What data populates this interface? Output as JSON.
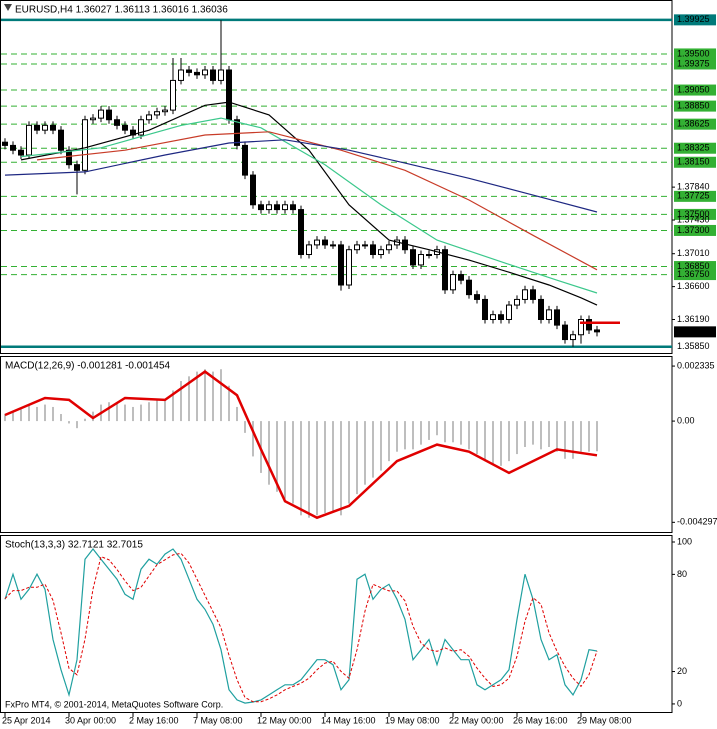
{
  "chart_data": [
    {
      "type": "candlestick",
      "title": "EURUSD,H4 1.36027 1.36113 1.36016 1.36036",
      "xlim": [
        -0.5,
        83.375
      ],
      "xticks": [
        {
          "value": 0,
          "label": "25 Apr 2014"
        },
        {
          "value": 8,
          "label": "30 Apr 00:00"
        },
        {
          "value": 16,
          "label": "2 May 16:00"
        },
        {
          "value": 24,
          "label": "7 May 08:00"
        },
        {
          "value": 32,
          "label": "12 May 00:00"
        },
        {
          "value": 40,
          "label": "14 May 16:00"
        },
        {
          "value": 48,
          "label": "19 May 08:00"
        },
        {
          "value": 56,
          "label": "22 May 00:00"
        },
        {
          "value": 64,
          "label": "26 May 16:00"
        },
        {
          "value": 72,
          "label": "29 May 08:00"
        }
      ],
      "ylim": [
        1.3576,
        1.4016
      ],
      "yticks": [
        {
          "value": 1.3784,
          "label": "1.37840"
        },
        {
          "value": 1.3743,
          "label": "1.37430"
        },
        {
          "value": 1.3701,
          "label": "1.37010"
        },
        {
          "value": 1.366,
          "label": "1.36600"
        },
        {
          "value": 1.3619,
          "label": "1.36190"
        }
      ],
      "levels": [
        {
          "value": 1.395,
          "label": "1.39500"
        },
        1.39375,
        {
          "value": 1.3905,
          "label": "1.39050"
        },
        {
          "value": 1.3885,
          "label": "1.38850"
        },
        1.38625,
        1.38325,
        {
          "value": 1.3815,
          "label": "1.38150"
        },
        1.37725,
        {
          "value": 1.375,
          "label": "1.37500"
        },
        {
          "value": 1.373,
          "label": "1.37300"
        },
        {
          "value": 1.3685,
          "label": "1.36850"
        },
        {
          "value": 1.3675,
          "label": "1.36750"
        }
      ],
      "bounds": [
        1.39925,
        {
          "value": 1.3585,
          "label": "1.35850"
        }
      ],
      "bounds_color": "#007a7a",
      "level_color": "#33b033",
      "last": 1.36036,
      "marker": 1.3615,
      "marker_color": "#e00000",
      "open": [
        1.384,
        1.3836,
        1.383,
        1.3824,
        1.3861,
        1.3855,
        1.3861,
        1.3855,
        1.383,
        1.3812,
        1.3805,
        1.3868,
        1.387,
        1.388,
        1.3868,
        1.3861,
        1.3855,
        1.3849,
        1.3868,
        1.3874,
        1.3878,
        1.388,
        1.3917,
        1.393,
        1.3927,
        1.3924,
        1.393,
        1.3917,
        1.393,
        1.3868,
        1.3836,
        1.3799,
        1.3762,
        1.3756,
        1.3762,
        1.3756,
        1.3762,
        1.3756,
        1.37,
        1.3712,
        1.3718,
        1.3712,
        1.3712,
        1.3662,
        1.3706,
        1.3712,
        1.3712,
        1.37,
        1.3706,
        1.3712,
        1.3718,
        1.3706,
        1.3687,
        1.37,
        1.37,
        1.3706,
        1.3656,
        1.3675,
        1.3668,
        1.365,
        1.3644,
        1.3619,
        1.3625,
        1.3619,
        1.3637,
        1.3644,
        1.3656,
        1.3644,
        1.3619,
        1.3631,
        1.3612,
        1.3594,
        1.36,
        1.3619,
        1.3606
      ],
      "high": [
        1.3845,
        1.3841,
        1.3835,
        1.3866,
        1.3866,
        1.3866,
        1.3866,
        1.386,
        1.3835,
        1.3817,
        1.3873,
        1.3875,
        1.3885,
        1.3885,
        1.3873,
        1.3866,
        1.386,
        1.3873,
        1.3879,
        1.3883,
        1.3885,
        1.3945,
        1.3945,
        1.3935,
        1.3932,
        1.3935,
        1.3935,
        1.3992,
        1.3935,
        1.3873,
        1.3841,
        1.3804,
        1.3767,
        1.3767,
        1.3767,
        1.3767,
        1.3767,
        1.3761,
        1.3717,
        1.3723,
        1.3723,
        1.3717,
        1.3717,
        1.3711,
        1.3717,
        1.3717,
        1.3717,
        1.3711,
        1.3717,
        1.3723,
        1.3723,
        1.3711,
        1.3705,
        1.3705,
        1.3711,
        1.3711,
        1.368,
        1.368,
        1.3673,
        1.3655,
        1.3649,
        1.363,
        1.363,
        1.3642,
        1.3649,
        1.3661,
        1.3661,
        1.3649,
        1.3636,
        1.3636,
        1.3617,
        1.3605,
        1.3624,
        1.3624,
        1.3611
      ],
      "low": [
        1.3831,
        1.3825,
        1.3819,
        1.3819,
        1.385,
        1.385,
        1.385,
        1.3825,
        1.3807,
        1.3775,
        1.38,
        1.3863,
        1.3865,
        1.3863,
        1.3856,
        1.385,
        1.3844,
        1.3844,
        1.3863,
        1.3869,
        1.3873,
        1.3875,
        1.3912,
        1.3922,
        1.3919,
        1.3919,
        1.3912,
        1.3912,
        1.3863,
        1.3831,
        1.3794,
        1.3757,
        1.3751,
        1.3751,
        1.3751,
        1.3751,
        1.3751,
        1.3695,
        1.3695,
        1.3707,
        1.3707,
        1.3707,
        1.3655,
        1.3657,
        1.3701,
        1.3707,
        1.3695,
        1.3695,
        1.3701,
        1.3707,
        1.3701,
        1.3682,
        1.3682,
        1.3695,
        1.3695,
        1.3651,
        1.3651,
        1.3663,
        1.3645,
        1.3639,
        1.3614,
        1.3614,
        1.3614,
        1.3614,
        1.3632,
        1.3639,
        1.3639,
        1.3614,
        1.3614,
        1.3607,
        1.3589,
        1.3585,
        1.3589,
        1.3601,
        1.3598
      ],
      "close": [
        1.3836,
        1.383,
        1.3824,
        1.3861,
        1.3855,
        1.3861,
        1.3855,
        1.383,
        1.3812,
        1.3805,
        1.3868,
        1.387,
        1.388,
        1.3868,
        1.3861,
        1.3855,
        1.3849,
        1.3868,
        1.3874,
        1.3878,
        1.388,
        1.3917,
        1.393,
        1.3927,
        1.3924,
        1.393,
        1.3917,
        1.393,
        1.3868,
        1.3836,
        1.3799,
        1.3762,
        1.3756,
        1.3762,
        1.3756,
        1.3762,
        1.3756,
        1.37,
        1.3712,
        1.3718,
        1.3712,
        1.3712,
        1.3662,
        1.3706,
        1.3712,
        1.3712,
        1.37,
        1.3706,
        1.3712,
        1.3718,
        1.3706,
        1.3687,
        1.37,
        1.37,
        1.3706,
        1.3656,
        1.3675,
        1.3668,
        1.365,
        1.3644,
        1.3619,
        1.3625,
        1.3619,
        1.3637,
        1.3644,
        1.3656,
        1.3644,
        1.3619,
        1.3631,
        1.3612,
        1.3594,
        1.36,
        1.3619,
        1.3606,
        1.36036
      ],
      "series": [
        {
          "color": "#000000",
          "x": [
            2,
            10,
            18,
            25,
            28,
            33,
            38,
            43,
            48,
            53,
            58,
            63,
            68,
            72,
            74
          ],
          "values": [
            1.3818,
            1.3833,
            1.3855,
            1.3886,
            1.389,
            1.3874,
            1.383,
            1.3762,
            1.3718,
            1.3706,
            1.3693,
            1.3678,
            1.3662,
            1.3646,
            1.3637
          ]
        },
        {
          "color": "#3cc88c",
          "x": [
            2,
            12,
            22,
            27,
            32,
            40,
            47,
            54,
            62,
            69,
            74
          ],
          "values": [
            1.3822,
            1.3833,
            1.3861,
            1.387,
            1.3858,
            1.3812,
            1.3762,
            1.3718,
            1.3691,
            1.3668,
            1.3652
          ]
        },
        {
          "color": "#c83c28",
          "x": [
            4,
            15,
            25,
            33,
            42,
            50,
            58,
            66,
            74
          ],
          "values": [
            1.3818,
            1.383,
            1.3849,
            1.3853,
            1.383,
            1.3805,
            1.3768,
            1.3724,
            1.3681
          ]
        },
        {
          "color": "#1e2882",
          "x": [
            0,
            10,
            20,
            28,
            35,
            43,
            50,
            58,
            66,
            74
          ],
          "values": [
            1.3799,
            1.3803,
            1.3824,
            1.3839,
            1.3843,
            1.383,
            1.3814,
            1.3795,
            1.3774,
            1.3753
          ]
        }
      ]
    },
    {
      "type": "bar",
      "title": "MACD(12,26,9) -0.001281 -0.001454",
      "color": "#a8a8a8",
      "ylim": [
        -0.00475,
        0.00272
      ],
      "yticks": [
        0.002335,
        {
          "value": 0,
          "label": "0.00"
        },
        -0.004297
      ],
      "values": [
        0.0003,
        0.0004,
        0.0005,
        0.0007,
        0.0006,
        0.0007,
        0.0006,
        0.0003,
        -0.0001,
        -0.0003,
        0.0001,
        0.0004,
        0.0007,
        0.0008,
        0.0008,
        0.0007,
        0.0006,
        0.0007,
        0.0008,
        0.0009,
        0.0009,
        0.0013,
        0.0017,
        0.0019,
        0.0021,
        0.0022,
        0.0021,
        0.0022,
        0.0015,
        0.0006,
        -0.0005,
        -0.0015,
        -0.0022,
        -0.0027,
        -0.003,
        -0.0033,
        -0.0035,
        -0.004,
        -0.0041,
        -0.004,
        -0.0039,
        -0.0038,
        -0.004,
        -0.0035,
        -0.0031,
        -0.0027,
        -0.0024,
        -0.0021,
        -0.0017,
        -0.0013,
        -0.0012,
        -0.0012,
        -0.001,
        -0.0008,
        -0.0006,
        -0.0009,
        -0.0009,
        -0.001,
        -0.0012,
        -0.0014,
        -0.0017,
        -0.0018,
        -0.0019,
        -0.0017,
        -0.0014,
        -0.0011,
        -0.001,
        -0.0012,
        -0.0011,
        -0.0013,
        -0.0016,
        -0.0016,
        -0.0013,
        -0.0013,
        -0.001281
      ],
      "series": [
        {
          "color": "#e00000",
          "x": [
            0,
            5,
            8,
            11,
            15,
            20,
            25,
            29,
            32,
            35,
            39,
            43,
            49,
            54,
            58,
            63,
            69,
            74
          ],
          "values": [
            0.00026,
            0.00098,
            0.0009,
            0.00013,
            0.00098,
            0.0009,
            0.0021,
            0.0011,
            -0.0012,
            -0.0034,
            -0.0041,
            -0.0036,
            -0.0017,
            -0.001,
            -0.0013,
            -0.0022,
            -0.0012,
            -0.001454
          ]
        }
      ]
    },
    {
      "type": "line",
      "title": "Stoch(13,3,3) 32.7121 32.7015",
      "footer": "FxPro MT4, © 2001-2014, MetaQuotes Software Corp.",
      "ylim": [
        -5.6,
        103.7
      ],
      "yticks": [
        100,
        80,
        20,
        0
      ],
      "series": [
        {
          "color": "#20a0a0",
          "values": [
            64.6,
            80.1,
            64.6,
            70.8,
            80.1,
            70.8,
            39.8,
            21.1,
            5.6,
            27.3,
            89.4,
            95.7,
            89.4,
            83.2,
            77.0,
            67.7,
            64.6,
            83.2,
            89.4,
            86.3,
            92.5,
            95.7,
            89.4,
            77.0,
            64.6,
            58.4,
            49.1,
            33.5,
            8.7,
            2.5,
            0.5,
            1.2,
            2.5,
            5.6,
            8.7,
            11.8,
            11.8,
            14.9,
            21.1,
            27.3,
            27.3,
            24.2,
            8.7,
            14.9,
            77.0,
            80.1,
            64.6,
            70.8,
            73.9,
            64.6,
            52.2,
            27.3,
            33.5,
            39.8,
            24.2,
            39.8,
            33.5,
            27.3,
            27.3,
            11.8,
            8.7,
            11.8,
            14.9,
            21.1,
            52.2,
            80.1,
            64.6,
            39.8,
            27.3,
            30.4,
            11.8,
            5.6,
            14.9,
            33.5,
            32.7121
          ]
        },
        {
          "color": "#e00000",
          "dashed": true,
          "values": [
            65,
            70,
            70,
            72,
            72,
            74,
            64,
            44,
            22,
            18,
            40,
            71,
            91,
            89,
            83,
            76,
            70,
            72,
            79,
            86,
            89,
            92,
            93,
            87,
            77,
            67,
            57,
            47,
            30,
            15,
            4,
            1.4,
            1.4,
            3.1,
            5.6,
            8.7,
            10.8,
            12.8,
            15.9,
            21.1,
            25.2,
            26.3,
            20.1,
            15.9,
            33.5,
            57.3,
            73.9,
            71.8,
            69.8,
            69.8,
            63.6,
            48,
            37.7,
            33.5,
            32.5,
            34.6,
            32.5,
            33.5,
            29.4,
            22.1,
            15.9,
            10.8,
            11.8,
            15.9,
            29.4,
            51.1,
            65.6,
            61.5,
            43.9,
            32.5,
            23.2,
            15.9,
            10.8,
            18.0,
            32.7015
          ]
        }
      ]
    }
  ]
}
